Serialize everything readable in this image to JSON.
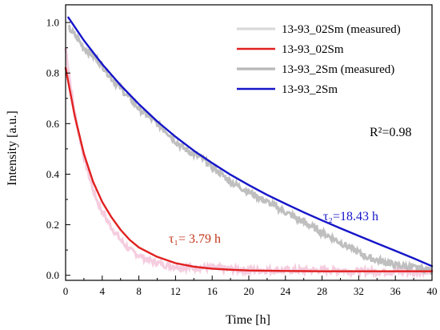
{
  "chart_data": {
    "type": "line",
    "xlabel": "Time [h]",
    "ylabel": "Intensity [a.u.]",
    "xlim": [
      0,
      40
    ],
    "ylim": [
      -0.02,
      1.07
    ],
    "xticks": [
      "0",
      "4",
      "8",
      "12",
      "16",
      "20",
      "24",
      "28",
      "32",
      "36",
      "40"
    ],
    "yticks": [
      "0.0",
      "0.2",
      "0.4",
      "0.6",
      "0.8",
      "1.0"
    ],
    "grid": false,
    "legend_position": "top-right",
    "series": [
      {
        "name": "13-93_02Sm (measured)",
        "style": "noisy-measured",
        "color": "#f4c8dc",
        "legend_color": "#d9d9d9",
        "x": [
          0,
          0.5,
          1,
          1.5,
          2,
          2.5,
          3,
          3.5,
          4,
          5,
          6,
          7,
          8,
          9,
          10,
          11,
          12,
          14,
          16,
          18,
          20,
          22,
          24,
          26,
          28,
          30,
          32,
          34,
          36,
          38,
          40
        ],
        "y": [
          0.9,
          0.76,
          0.64,
          0.55,
          0.47,
          0.4,
          0.34,
          0.29,
          0.25,
          0.19,
          0.14,
          0.1,
          0.08,
          0.06,
          0.05,
          0.04,
          0.035,
          0.03,
          0.03,
          0.025,
          0.02,
          0.02,
          0.02,
          0.02,
          0.02,
          0.02,
          0.015,
          0.015,
          0.015,
          0.015,
          0.015
        ]
      },
      {
        "name": "13-93_02Sm",
        "style": "fit",
        "color": "#e02020",
        "x": [
          0,
          1,
          2,
          3,
          4,
          5,
          6,
          7,
          8,
          10,
          12,
          14,
          16,
          18,
          20,
          24,
          28,
          32,
          36,
          40
        ],
        "y": [
          0.82,
          0.63,
          0.48,
          0.37,
          0.29,
          0.23,
          0.18,
          0.14,
          0.11,
          0.073,
          0.048,
          0.034,
          0.026,
          0.022,
          0.019,
          0.017,
          0.016,
          0.016,
          0.016,
          0.016
        ]
      },
      {
        "name": "13-93_2Sm (measured)",
        "style": "noisy-measured",
        "color": "#b8b8b8",
        "x": [
          0.3,
          1,
          2,
          3,
          4,
          5,
          6,
          7,
          8,
          9,
          10,
          11,
          12,
          13,
          14,
          15,
          16,
          17,
          18,
          19,
          20,
          21,
          22,
          23,
          24,
          25,
          26,
          27,
          28,
          29,
          30,
          31,
          32,
          33,
          34,
          35,
          36,
          37,
          38,
          39,
          40
        ],
        "y": [
          0.98,
          0.95,
          0.9,
          0.87,
          0.83,
          0.78,
          0.74,
          0.7,
          0.66,
          0.63,
          0.6,
          0.57,
          0.53,
          0.5,
          0.48,
          0.46,
          0.43,
          0.4,
          0.37,
          0.35,
          0.33,
          0.31,
          0.29,
          0.27,
          0.25,
          0.23,
          0.21,
          0.19,
          0.17,
          0.15,
          0.13,
          0.11,
          0.09,
          0.07,
          0.06,
          0.05,
          0.04,
          0.035,
          0.03,
          0.025,
          0.02
        ]
      },
      {
        "name": "13-93_2Sm",
        "style": "fit",
        "color": "#1515c8",
        "x": [
          0.3,
          2,
          4,
          6,
          8,
          10,
          12,
          14,
          16,
          18,
          20,
          22,
          24,
          26,
          28,
          30,
          32,
          34,
          36,
          38,
          40
        ],
        "y": [
          1.02,
          0.929,
          0.835,
          0.752,
          0.677,
          0.609,
          0.548,
          0.493,
          0.444,
          0.398,
          0.357,
          0.318,
          0.283,
          0.249,
          0.217,
          0.186,
          0.156,
          0.126,
          0.097,
          0.067,
          0.036
        ]
      }
    ],
    "annotations": [
      {
        "id": "r2",
        "text": "R²=0.98",
        "color": "#000000"
      },
      {
        "id": "tau1",
        "text": "τ₁= 3.79 h",
        "color": "#c0361a"
      },
      {
        "id": "tau2",
        "text": "τ₂=18.43 h",
        "color": "#1515c8"
      }
    ]
  }
}
